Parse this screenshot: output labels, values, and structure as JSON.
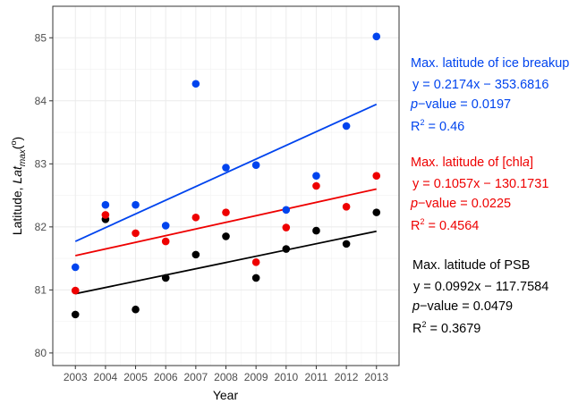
{
  "chart_data": {
    "type": "scatter",
    "x": [
      2003,
      2004,
      2005,
      2006,
      2007,
      2008,
      2009,
      2010,
      2011,
      2012,
      2013
    ],
    "xlabel": "Year",
    "ylabel_prefix": "Latitude, ",
    "ylabel_var": "Lat",
    "ylabel_sub": "max",
    "ylabel_unit_open": "(",
    "ylabel_unit_sup": "o",
    "ylabel_unit_close": ")",
    "xlim": [
      2002.25,
      2013.75
    ],
    "ylim": [
      79.8,
      85.5
    ],
    "yticks": [
      80,
      81,
      82,
      83,
      84,
      85
    ],
    "grid": true,
    "series": [
      {
        "color": "#0044ee",
        "values": [
          81.36,
          82.35,
          82.35,
          82.02,
          84.27,
          82.94,
          82.98,
          82.27,
          82.81,
          83.6,
          85.02
        ],
        "fit": [
          0.2174,
          -353.6816
        ],
        "annotation": {
          "title": "Max. latitude of ice breakup",
          "equation": "y = 0.2174x − 353.6816",
          "p_italic": "p",
          "p_text": "−value = 0.0197",
          "r2_label": "R",
          "r2_sup": "2",
          "r2_text": " = 0.46"
        }
      },
      {
        "color": "#ee0000",
        "values": [
          80.99,
          82.19,
          81.9,
          81.77,
          82.15,
          82.23,
          81.44,
          81.99,
          82.65,
          82.32,
          82.81
        ],
        "fit": [
          0.1057,
          -130.1731
        ],
        "annotation": {
          "title_prefix": "Max. latitude of [chl",
          "title_italic": "a",
          "title_suffix": "]",
          "equation": "y = 0.1057x − 130.1731",
          "p_italic": "p",
          "p_text": "−value = 0.0225",
          "r2_label": "R",
          "r2_sup": "2",
          "r2_text": " = 0.4564"
        }
      },
      {
        "color": "#000000",
        "values": [
          80.61,
          82.12,
          80.69,
          81.19,
          81.56,
          81.85,
          81.19,
          81.65,
          81.94,
          81.73,
          82.23
        ],
        "fit": [
          0.0992,
          -117.7584
        ],
        "annotation": {
          "title": "Max. latitude of PSB",
          "equation": "y = 0.0992x − 117.7584",
          "p_italic": "p",
          "p_text": "−value = 0.0479",
          "r2_label": "R",
          "r2_sup": "2",
          "r2_text": " = 0.3679"
        }
      }
    ]
  }
}
